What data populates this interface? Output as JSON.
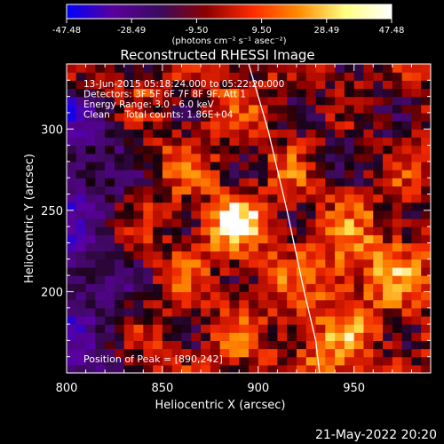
{
  "chart_data": {
    "type": "heatmap",
    "title": "Reconstructed RHESSI Image",
    "xlabel": "Heliocentric X (arcsec)",
    "ylabel": "Heliocentric Y (arcsec)",
    "xlim": [
      800,
      990
    ],
    "ylim": [
      150,
      340
    ],
    "x_ticks": [
      800,
      850,
      900,
      950
    ],
    "y_ticks": [
      200,
      250,
      300
    ],
    "colorbar": {
      "min": -47.48,
      "max": 47.48,
      "ticks": [
        "-47.48",
        "-28.49",
        "-9.50",
        "9.50",
        "28.49",
        "47.48"
      ],
      "unit_label": "(photons cm⁻² s⁻¹ asec⁻²)",
      "colors": [
        "#0000ff",
        "#5a009c",
        "#3a0a60",
        "#8b0000",
        "#ff2a00",
        "#ff8c00",
        "#ffff80",
        "#ffffff"
      ]
    },
    "info_lines": [
      "13-Jun-2015 05:18:24.000 to 05:22:20.000",
      "Detectors: 3F 5F 6F 7F 8F 9F, Att 1",
      "Energy Range: 3.0 - 6.0 keV",
      "Clean     Total counts: 1.86E+04"
    ],
    "peak_label": "Position of Peak = [890,242]",
    "peak": {
      "x": 890,
      "y": 242
    },
    "limb_curve": [
      [
        895,
        340
      ],
      [
        905,
        300
      ],
      [
        915,
        250
      ],
      [
        924,
        200
      ],
      [
        930,
        170
      ],
      [
        932,
        150
      ]
    ],
    "grid": false
  },
  "footer": {
    "date": "21-May-2022 20:20"
  }
}
